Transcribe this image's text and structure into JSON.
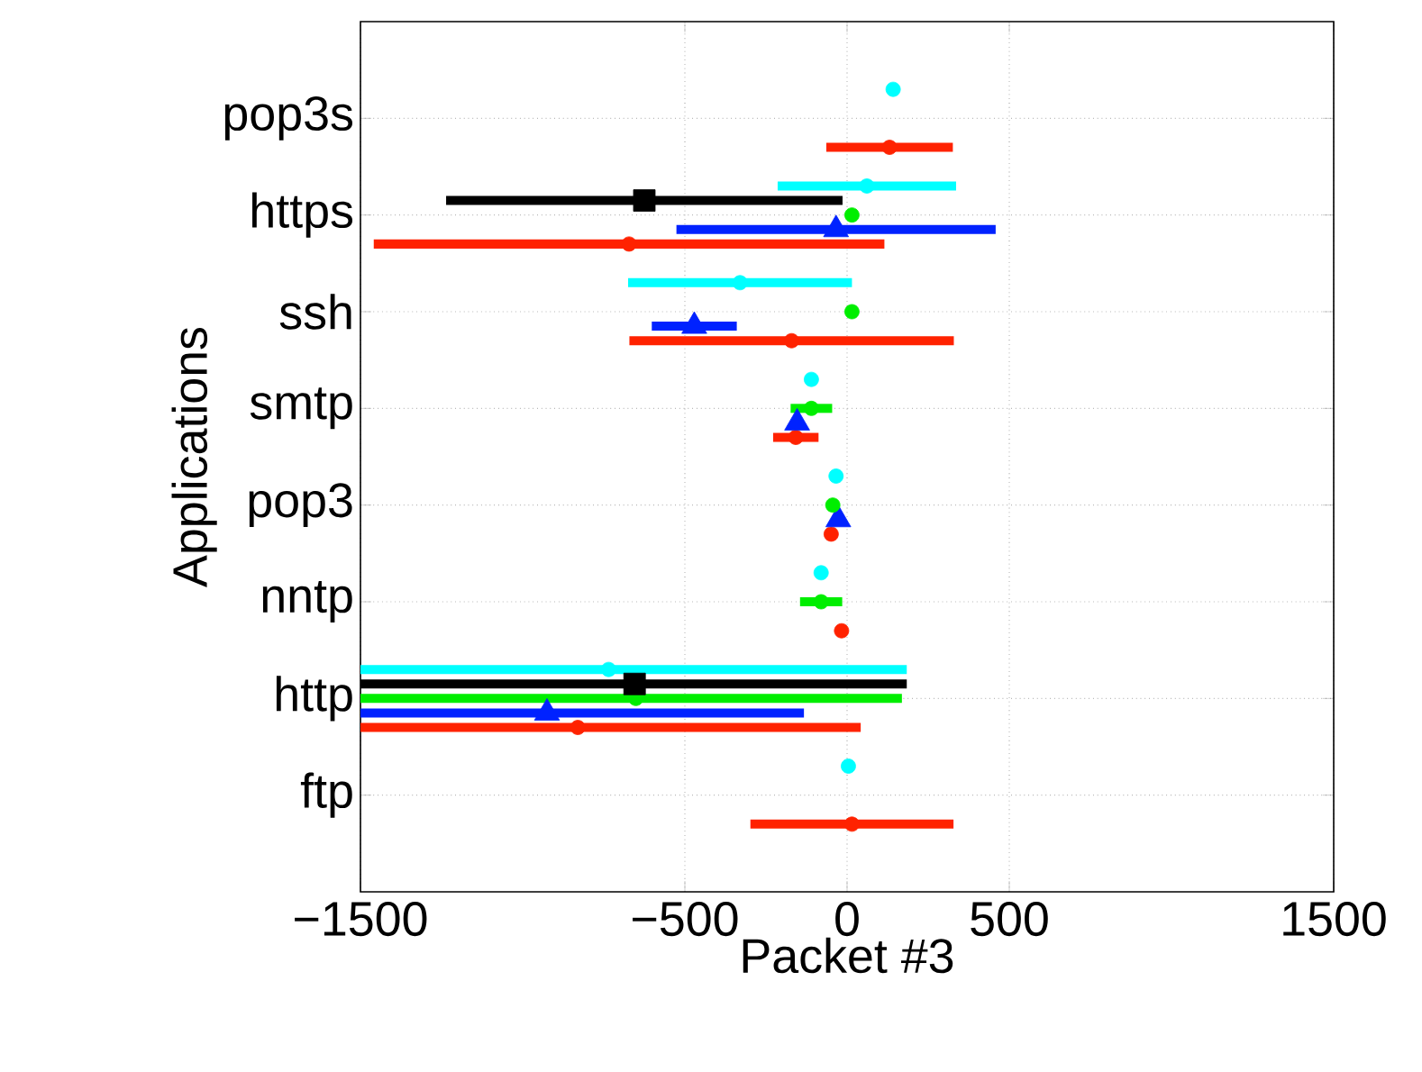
{
  "chart_data": {
    "type": "scatter",
    "orientation": "horizontal",
    "xlabel": "Packet #3",
    "ylabel": "Applications",
    "categories": [
      "pop3s",
      "https",
      "ssh",
      "smtp",
      "pop3",
      "nntp",
      "http",
      "ftp"
    ],
    "xlim": [
      -1500,
      1500
    ],
    "xticks": [
      {
        "value": -1500,
        "label": "−1500"
      },
      {
        "value": -500,
        "label": "−500"
      },
      0,
      500,
      1500
    ],
    "grid": true,
    "series": [
      {
        "color": "#00ffff",
        "marker": "circle",
        "values": [
          142,
          61,
          -330,
          -110,
          -34,
          -80,
          -735,
          4
        ],
        "errors": [
          null,
          275,
          345,
          null,
          null,
          null,
          [
            -1500,
            184
          ],
          null
        ]
      },
      {
        "color": "#000000",
        "marker": "square",
        "values": [
          null,
          -625,
          null,
          null,
          null,
          null,
          -655,
          null
        ],
        "errors": [
          null,
          611,
          null,
          null,
          null,
          null,
          [
            -1500,
            184
          ],
          null
        ]
      },
      {
        "color": "#00ee00",
        "marker": "circle",
        "values": [
          null,
          15,
          15,
          -110,
          -44,
          -80,
          -651,
          null
        ],
        "errors": [
          null,
          null,
          null,
          64,
          null,
          65,
          [
            -1500,
            169
          ],
          null
        ]
      },
      {
        "color": "#0022ff",
        "marker": "triangle",
        "values": [
          null,
          -34,
          -471,
          -154,
          -27,
          null,
          -925,
          null
        ],
        "errors": [
          null,
          492,
          131,
          null,
          null,
          null,
          [
            -1500,
            -133
          ],
          null
        ]
      },
      {
        "color": "#ff2200",
        "marker": "circle",
        "values": [
          131,
          -672,
          -171,
          -158,
          -49,
          -17,
          -830,
          15
        ],
        "errors": [
          195,
          787,
          500,
          70,
          null,
          null,
          [
            -1500,
            42
          ],
          313
        ]
      }
    ]
  }
}
